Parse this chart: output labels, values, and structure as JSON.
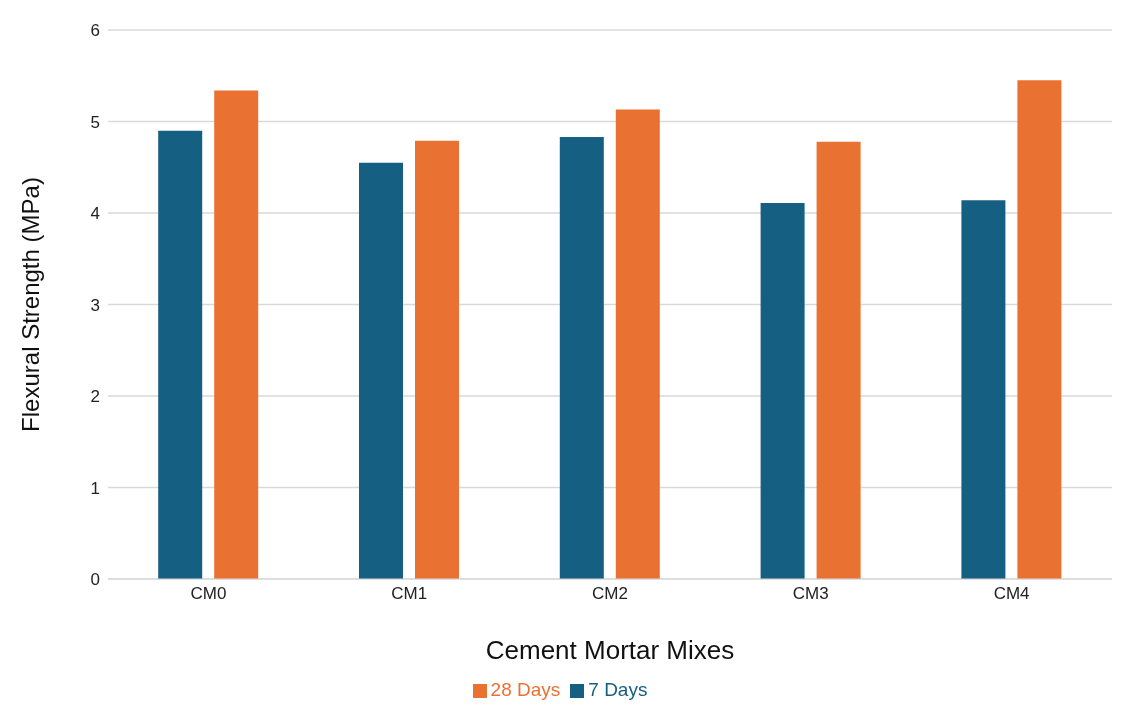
{
  "chart_data": {
    "type": "bar",
    "xlabel": "Cement Mortar Mixes",
    "ylabel": "Flexural Strength (MPa)",
    "categories": [
      "CM0",
      "CM1",
      "CM2",
      "CM3",
      "CM4"
    ],
    "series": [
      {
        "name": "7 Days",
        "color": "#156082",
        "values": [
          4.9,
          4.55,
          4.83,
          4.11,
          4.14
        ]
      },
      {
        "name": "28 Days",
        "color": "#e97132",
        "values": [
          5.34,
          4.79,
          5.13,
          4.78,
          5.45
        ]
      }
    ],
    "ylim": [
      0,
      6
    ],
    "yticks": [
      0,
      1,
      2,
      3,
      4,
      5,
      6
    ],
    "grid": "y",
    "legend": "bottom"
  }
}
